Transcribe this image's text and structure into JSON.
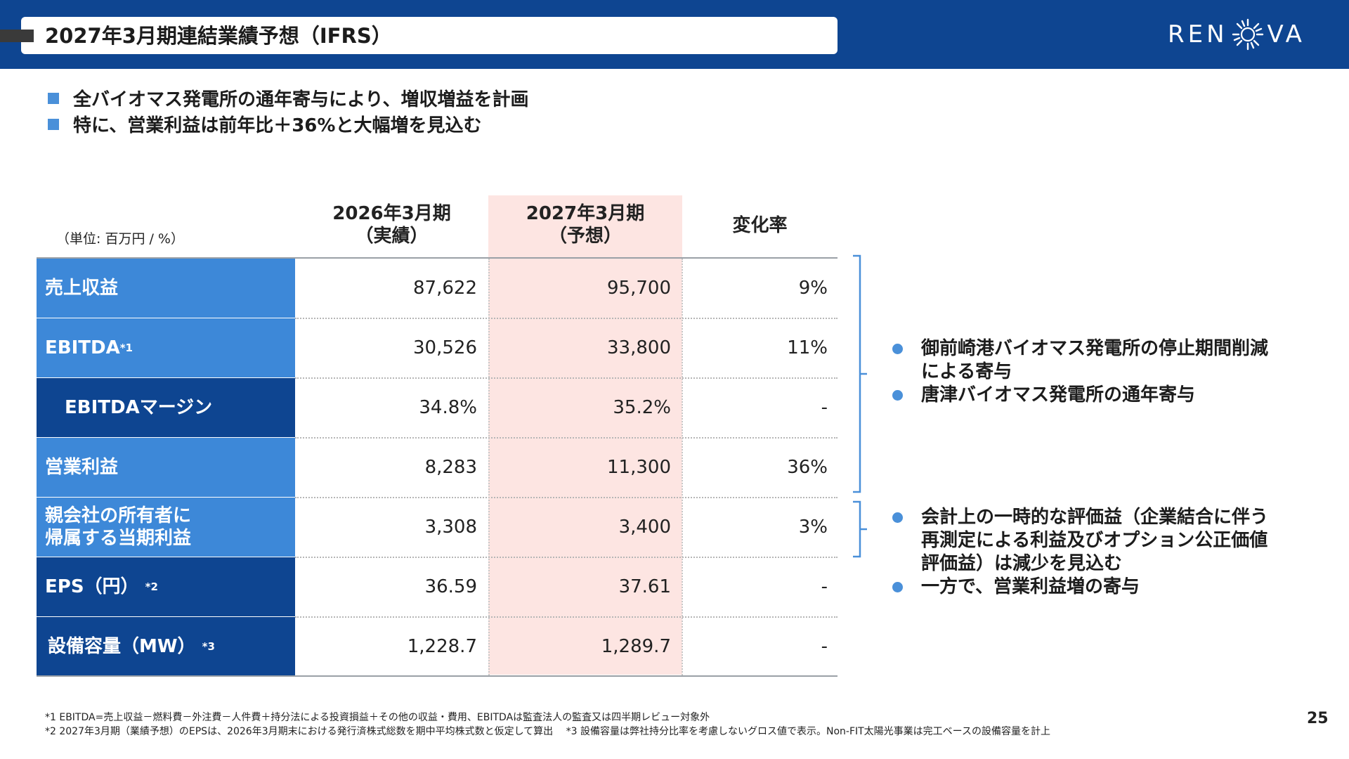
{
  "header": {
    "title": "2027年3月期連結業績予想（IFRS）",
    "logo_left": "REN",
    "logo_right": "VA"
  },
  "bullets": [
    "全バイオマス発電所の通年寄与により、増収増益を計画",
    "特に、営業利益は前年比＋36%と大幅増を見込む"
  ],
  "table": {
    "unit": "（単位: 百万円 / %）",
    "columns": [
      {
        "line1": "2026年3月期",
        "line2": "（実績）"
      },
      {
        "line1": "2027年3月期",
        "line2": "（予想）"
      },
      {
        "line1": "変化率",
        "line2": ""
      }
    ],
    "rows": [
      {
        "label": "売上収益",
        "sup": "",
        "actual": "87,622",
        "forecast": "95,700",
        "change": "9%"
      },
      {
        "label": "EBITDA",
        "sup": "*1",
        "actual": "30,526",
        "forecast": "33,800",
        "change": "11%"
      },
      {
        "label": "EBITDAマージン",
        "sup": "",
        "actual": "34.8%",
        "forecast": "35.2%",
        "change": "-"
      },
      {
        "label": "営業利益",
        "sup": "",
        "actual": "8,283",
        "forecast": "11,300",
        "change": "36%"
      },
      {
        "label": "親会社の所有者に",
        "label2": "帰属する当期利益",
        "sup": "",
        "actual": "3,308",
        "forecast": "3,400",
        "change": "3%"
      },
      {
        "label": "EPS（円）",
        "sup": "*2",
        "actual": "36.59",
        "forecast": "37.61",
        "change": "-"
      },
      {
        "label": "設備容量（MW）",
        "sup": "*3",
        "actual": "1,228.7",
        "forecast": "1,289.7",
        "change": "-"
      }
    ]
  },
  "notes_right": {
    "group1": [
      {
        "line1": "御前崎港バイオマス発電所の停止期間削減",
        "line2": "による寄与"
      },
      {
        "line1": "唐津バイオマス発電所の通年寄与",
        "line2": ""
      }
    ],
    "group2": [
      {
        "line1": "会計上の一時的な評価益（企業結合に伴う",
        "line2": "再測定による利益及びオプション公正価値",
        "line3": "評価益）は減少を見込む"
      },
      {
        "line1": "一方で、営業利益増の寄与",
        "line2": "",
        "line3": ""
      }
    ]
  },
  "footnotes": [
    "*1 EBITDA=売上収益－燃料費－外注費－人件費＋持分法による投資損益＋その他の収益・費用、EBITDAは監査法人の監査又は四半期レビュー対象外",
    "*2 2027年3月期（業績予想）のEPSは、2026年3月期末における発行済株式総数を期中平均株式数と仮定して算出　 *3 設備容量は弊社持分比率を考慮しないグロス値で表示。Non-FIT太陽光事業は完工ベースの設備容量を計上"
  ],
  "page_number": "25",
  "colors": {
    "header_bg": "#0e4591",
    "label_light": "#3d88d8",
    "label_dark": "#0e4591",
    "forecast_bg": "#fde5e2",
    "accent": "#4a90d9"
  }
}
